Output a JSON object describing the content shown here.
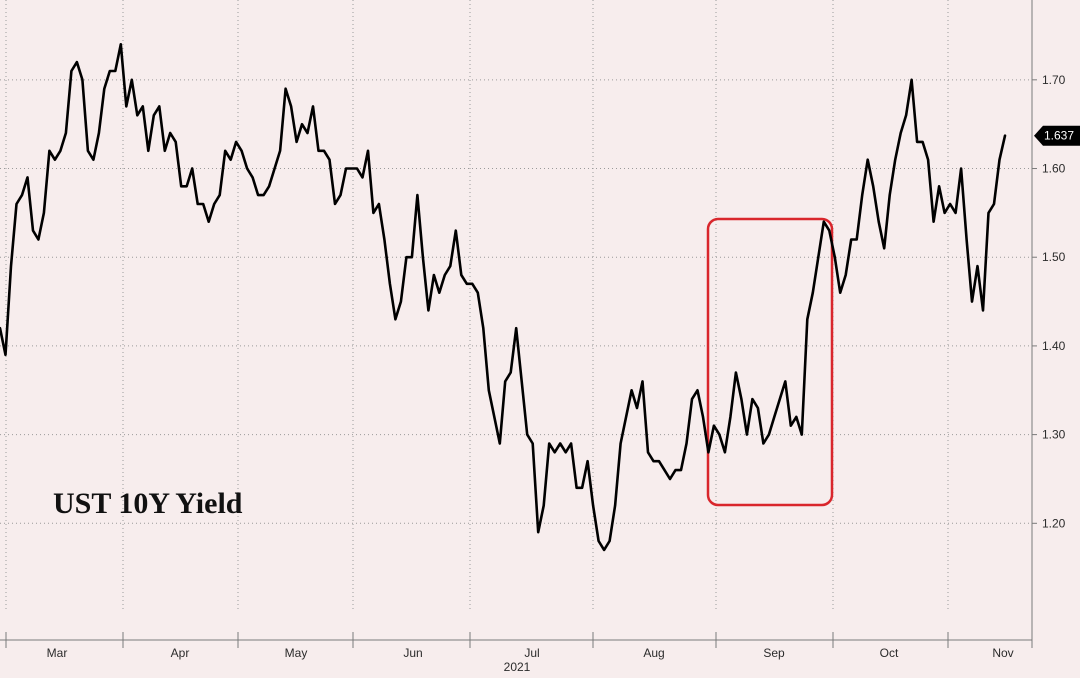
{
  "chart_data": {
    "type": "line",
    "title": "UST 10Y Yield",
    "year_label": "2021",
    "ylim": [
      1.1,
      1.79
    ],
    "y_ticks": [
      "1.20",
      "1.30",
      "1.40",
      "1.50",
      "1.60",
      "1.70"
    ],
    "x_ticks": [
      "Mar",
      "Apr",
      "May",
      "Jun",
      "Jul",
      "Aug",
      "Sep",
      "Oct",
      "Nov"
    ],
    "last_value_label": "1.637",
    "highlight_box_color": "#d9262c",
    "line_color": "#000000",
    "grid": true,
    "series": [
      {
        "values": [
          1.42,
          1.39,
          1.49,
          1.56,
          1.57,
          1.59,
          1.53,
          1.52,
          1.55,
          1.62,
          1.61,
          1.62,
          1.64,
          1.71,
          1.72,
          1.7,
          1.62,
          1.61,
          1.64,
          1.69,
          1.71,
          1.71,
          1.74,
          1.67,
          1.7,
          1.66,
          1.67,
          1.62,
          1.66,
          1.67,
          1.62,
          1.64,
          1.63,
          1.58,
          1.58,
          1.6,
          1.56,
          1.56,
          1.54,
          1.56,
          1.57,
          1.62,
          1.61,
          1.63,
          1.62,
          1.6,
          1.59,
          1.57,
          1.57,
          1.58,
          1.6,
          1.62,
          1.69,
          1.67,
          1.63,
          1.65,
          1.64,
          1.67,
          1.62,
          1.62,
          1.61,
          1.56,
          1.57,
          1.6,
          1.6,
          1.6,
          1.59,
          1.62,
          1.55,
          1.56,
          1.52,
          1.47,
          1.43,
          1.45,
          1.5,
          1.5,
          1.57,
          1.5,
          1.44,
          1.48,
          1.46,
          1.48,
          1.49,
          1.53,
          1.48,
          1.47,
          1.47,
          1.46,
          1.42,
          1.35,
          1.32,
          1.29,
          1.36,
          1.37,
          1.42,
          1.36,
          1.3,
          1.29,
          1.19,
          1.22,
          1.29,
          1.28,
          1.29,
          1.28,
          1.29,
          1.24,
          1.24,
          1.27,
          1.22,
          1.18,
          1.17,
          1.18,
          1.22,
          1.29,
          1.32,
          1.35,
          1.33,
          1.36,
          1.28,
          1.27,
          1.27,
          1.26,
          1.25,
          1.26,
          1.26,
          1.29,
          1.34,
          1.35,
          1.32,
          1.28,
          1.31,
          1.3,
          1.28,
          1.32,
          1.37,
          1.34,
          1.3,
          1.34,
          1.33,
          1.29,
          1.3,
          1.32,
          1.34,
          1.36,
          1.31,
          1.32,
          1.3,
          1.43,
          1.46,
          1.5,
          1.54,
          1.53,
          1.5,
          1.46,
          1.48,
          1.52,
          1.52,
          1.57,
          1.61,
          1.58,
          1.54,
          1.51,
          1.57,
          1.61,
          1.64,
          1.66,
          1.7,
          1.63,
          1.63,
          1.61,
          1.54,
          1.58,
          1.55,
          1.56,
          1.55,
          1.6,
          1.52,
          1.45,
          1.49,
          1.44,
          1.55,
          1.56,
          1.61,
          1.637
        ]
      }
    ]
  }
}
